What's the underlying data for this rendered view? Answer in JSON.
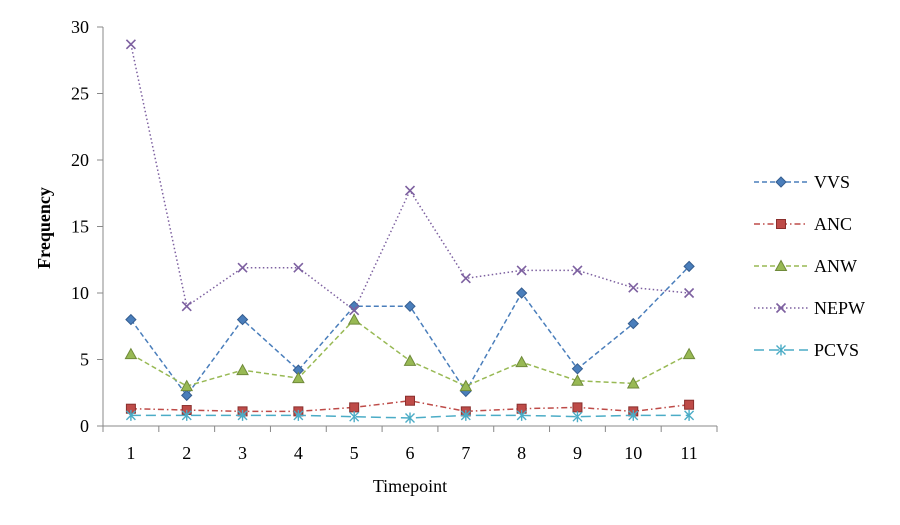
{
  "chart_data": {
    "type": "line",
    "title": "",
    "xlabel": "Timepoint",
    "ylabel": "Frequency",
    "x": [
      1,
      2,
      3,
      4,
      5,
      6,
      7,
      8,
      9,
      10,
      11
    ],
    "ylim": [
      0,
      30
    ],
    "yticks": [
      0,
      5,
      10,
      15,
      20,
      25,
      30
    ],
    "grid": false,
    "legend_position": "right",
    "series": [
      {
        "name": "VVS",
        "color": "#4A7EBB",
        "marker": "diamond",
        "dash": "dashed",
        "values": [
          8.0,
          2.3,
          8.0,
          4.2,
          9.0,
          9.0,
          2.6,
          10.0,
          4.3,
          7.7,
          12.0
        ]
      },
      {
        "name": "ANC",
        "color": "#BE4B48",
        "marker": "square",
        "dash": "dash-dot",
        "values": [
          1.3,
          1.2,
          1.1,
          1.1,
          1.4,
          1.9,
          1.1,
          1.3,
          1.4,
          1.1,
          1.6
        ]
      },
      {
        "name": "ANW",
        "color": "#98B954",
        "marker": "triangle",
        "dash": "dashed",
        "values": [
          5.4,
          3.0,
          4.2,
          3.6,
          8.0,
          4.9,
          3.0,
          4.8,
          3.4,
          3.2,
          5.4
        ]
      },
      {
        "name": "NEPW",
        "color": "#7D60A0",
        "marker": "x",
        "dash": "dotted",
        "values": [
          28.7,
          9.0,
          11.9,
          11.9,
          8.7,
          17.7,
          11.1,
          11.7,
          11.7,
          10.4,
          10.0
        ]
      },
      {
        "name": "PCVS",
        "color": "#4BACC6",
        "marker": "asterisk",
        "dash": "long-dash",
        "values": [
          0.8,
          0.8,
          0.8,
          0.8,
          0.7,
          0.6,
          0.8,
          0.8,
          0.7,
          0.8,
          0.8
        ]
      }
    ]
  }
}
